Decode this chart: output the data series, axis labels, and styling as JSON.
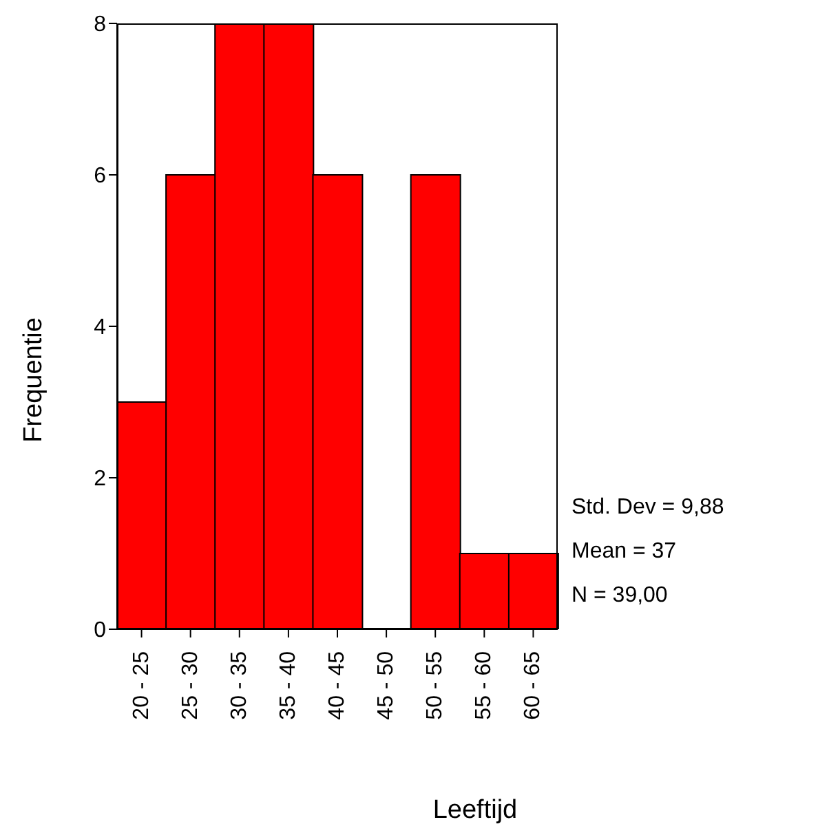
{
  "chart_data": {
    "type": "bar",
    "categories": [
      "20 - 25",
      "25 - 30",
      "30 - 35",
      "35 - 40",
      "40 - 45",
      "45 - 50",
      "50 - 55",
      "55 - 60",
      "60 - 65"
    ],
    "values": [
      3,
      6,
      8,
      8,
      6,
      0,
      6,
      1,
      1
    ],
    "color": "#ff0000",
    "ylim": [
      0,
      8
    ],
    "yticks": [
      0,
      2,
      4,
      6,
      8
    ],
    "xlabel": "Leeftijd",
    "ylabel": "Frequentie",
    "annotations": [
      "Std. Dev = 9,88",
      "Mean = 37",
      "N = 39,00"
    ]
  }
}
